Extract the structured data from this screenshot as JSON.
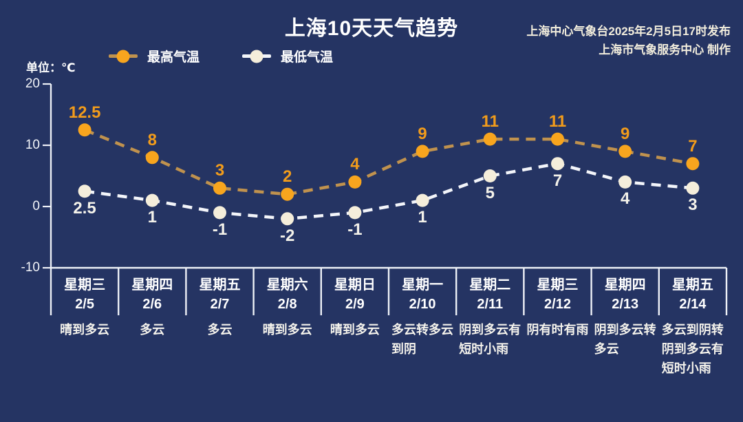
{
  "header": {
    "source_line1": "上海中心气象台2025年2月5日17时发布",
    "source_line2": "上海市气象服务中心 制作"
  },
  "chart_data": {
    "type": "line",
    "title": "上海10天天气趋势",
    "unit_label": "单位：℃",
    "xlabel": "",
    "ylabel": "",
    "ylim": [
      -10,
      20
    ],
    "yticks": [
      20,
      10,
      0,
      -10
    ],
    "grid": false,
    "legend_position": "top-left",
    "line_style": "dashed",
    "categories": [
      "2/5",
      "2/6",
      "2/7",
      "2/8",
      "2/9",
      "2/10",
      "2/11",
      "2/12",
      "2/13",
      "2/14"
    ],
    "days": [
      {
        "weekday": "星期三",
        "date": "2/5",
        "weather": "晴到多云",
        "weather_lines": [
          "晴到多云"
        ]
      },
      {
        "weekday": "星期四",
        "date": "2/6",
        "weather": "多云",
        "weather_lines": [
          "多云"
        ]
      },
      {
        "weekday": "星期五",
        "date": "2/7",
        "weather": "多云",
        "weather_lines": [
          "多云"
        ]
      },
      {
        "weekday": "星期六",
        "date": "2/8",
        "weather": "晴到多云",
        "weather_lines": [
          "晴到多云"
        ]
      },
      {
        "weekday": "星期日",
        "date": "2/9",
        "weather": "晴到多云",
        "weather_lines": [
          "晴到多云"
        ]
      },
      {
        "weekday": "星期一",
        "date": "2/10",
        "weather": "多云转多云到阴",
        "weather_lines": [
          "多云转多云",
          "到阴"
        ]
      },
      {
        "weekday": "星期二",
        "date": "2/11",
        "weather": "阴到多云有短时小雨",
        "weather_lines": [
          "阴到多云有",
          "短时小雨"
        ]
      },
      {
        "weekday": "星期三",
        "date": "2/12",
        "weather": "阴有时有雨",
        "weather_lines": [
          "阴有时有雨"
        ]
      },
      {
        "weekday": "星期四",
        "date": "2/13",
        "weather": "阴到多云转多云",
        "weather_lines": [
          "阴到多云转",
          "多云"
        ]
      },
      {
        "weekday": "星期五",
        "date": "2/14",
        "weather": "多云到阴转阴到多云有短时小雨",
        "weather_lines": [
          "多云到阴转",
          "阴到多云有",
          "短时小雨"
        ]
      }
    ],
    "series": [
      {
        "name": "最高气温",
        "values": [
          12.5,
          8,
          3,
          2,
          4,
          9,
          11,
          11,
          9,
          7
        ],
        "marker_color": "#f8a51e",
        "line_color": "#c0924e",
        "label_color": "#f29c1b",
        "label_position": "above"
      },
      {
        "name": "最低气温",
        "values": [
          2.5,
          1,
          -1,
          -2,
          -1,
          1,
          5,
          7,
          4,
          3
        ],
        "marker_color": "#f5eedb",
        "line_color": "#f3f5fa",
        "label_color": "#f4f2ea",
        "label_position": "below"
      }
    ]
  },
  "colors": {
    "background": "#253463",
    "axis": "#eef1f7",
    "title_text": "#ffffff",
    "source_text": "#f3eedd"
  }
}
